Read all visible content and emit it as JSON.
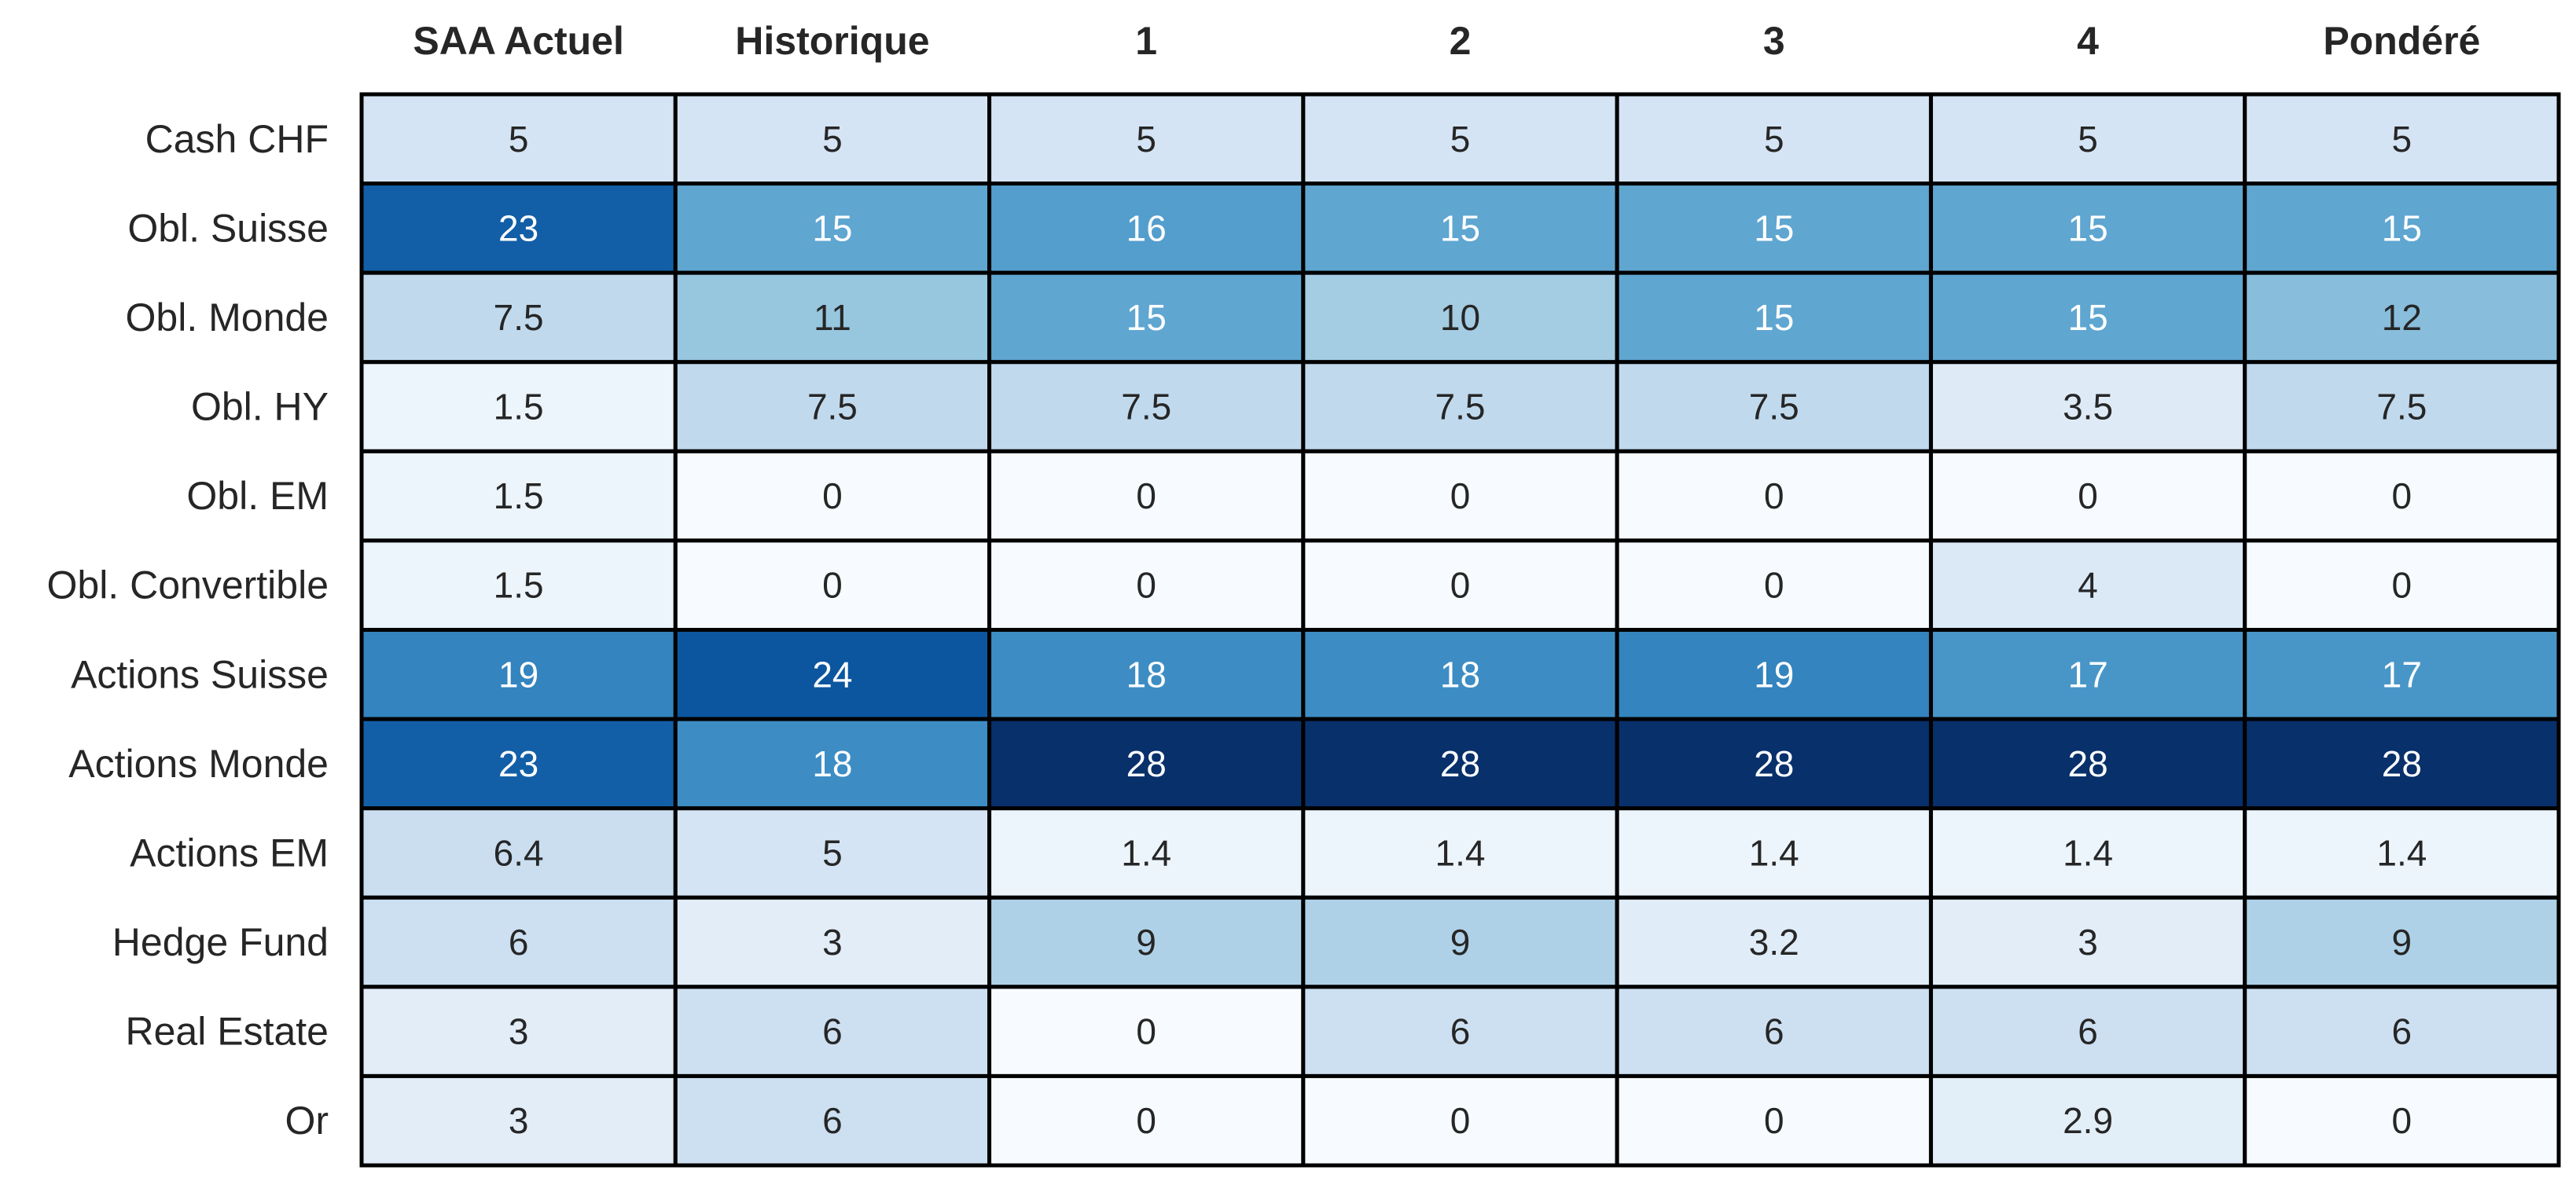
{
  "chart_data": {
    "type": "heatmap",
    "title": "",
    "xlabel": "",
    "ylabel": "",
    "colormap": "Blues",
    "vmin": 0,
    "vmax": 28,
    "colorbar": false,
    "column_labels": [
      "SAA Actuel",
      "Historique",
      "1",
      "2",
      "3",
      "4",
      "Pondéré"
    ],
    "row_labels": [
      "Cash CHF",
      "Obl. Suisse",
      "Obl. Monde",
      "Obl. HY",
      "Obl. EM",
      "Obl. Convertible",
      "Actions Suisse",
      "Actions Monde",
      "Actions EM",
      "Hedge Fund",
      "Real Estate",
      "Or"
    ],
    "values": [
      [
        5,
        5,
        5,
        5,
        5,
        5,
        5
      ],
      [
        23,
        15,
        16,
        15,
        15,
        15,
        15
      ],
      [
        7.5,
        11,
        15,
        10,
        15,
        15,
        12
      ],
      [
        1.5,
        7.5,
        7.5,
        7.5,
        7.5,
        3.5,
        7.5
      ],
      [
        1.5,
        0,
        0,
        0,
        0,
        0,
        0
      ],
      [
        1.5,
        0,
        0,
        0,
        0,
        4,
        0
      ],
      [
        19,
        24,
        18,
        18,
        19,
        17,
        17
      ],
      [
        23,
        18,
        28,
        28,
        28,
        28,
        28
      ],
      [
        6.4,
        5,
        1.4,
        1.4,
        1.4,
        1.4,
        1.4
      ],
      [
        6,
        3,
        9,
        9,
        3.2,
        3,
        9
      ],
      [
        3,
        6,
        0,
        6,
        6,
        6,
        6
      ],
      [
        3,
        6,
        0,
        0,
        0,
        2.9,
        0
      ]
    ],
    "cell_labels": [
      [
        "5",
        "5",
        "5",
        "5",
        "5",
        "5",
        "5"
      ],
      [
        "23",
        "15",
        "16",
        "15",
        "15",
        "15",
        "15"
      ],
      [
        "7.5",
        "11",
        "15",
        "10",
        "15",
        "15",
        "12"
      ],
      [
        "1.5",
        "7.5",
        "7.5",
        "7.5",
        "7.5",
        "3.5",
        "7.5"
      ],
      [
        "1.5",
        "0",
        "0",
        "0",
        "0",
        "0",
        "0"
      ],
      [
        "1.5",
        "0",
        "0",
        "0",
        "0",
        "4",
        "0"
      ],
      [
        "19",
        "24",
        "18",
        "18",
        "19",
        "17",
        "17"
      ],
      [
        "23",
        "18",
        "28",
        "28",
        "28",
        "28",
        "28"
      ],
      [
        "6.4",
        "5",
        "1.4",
        "1.4",
        "1.4",
        "1.4",
        "1.4"
      ],
      [
        "6",
        "3",
        "9",
        "9",
        "3.2",
        "3",
        "9"
      ],
      [
        "3",
        "6",
        "0",
        "6",
        "6",
        "6",
        "6"
      ],
      [
        "3",
        "6",
        "0",
        "0",
        "0",
        "2.9",
        "0"
      ]
    ],
    "colors": {
      "scale": [
        "#f7fbff",
        "#deebf7",
        "#c6dbef",
        "#9ecae1",
        "#6baed6",
        "#4292c6",
        "#2171b5",
        "#08519c",
        "#08306b"
      ],
      "cell_border": "#000000",
      "text_dark": "#262626",
      "text_light": "#ffffff"
    }
  }
}
